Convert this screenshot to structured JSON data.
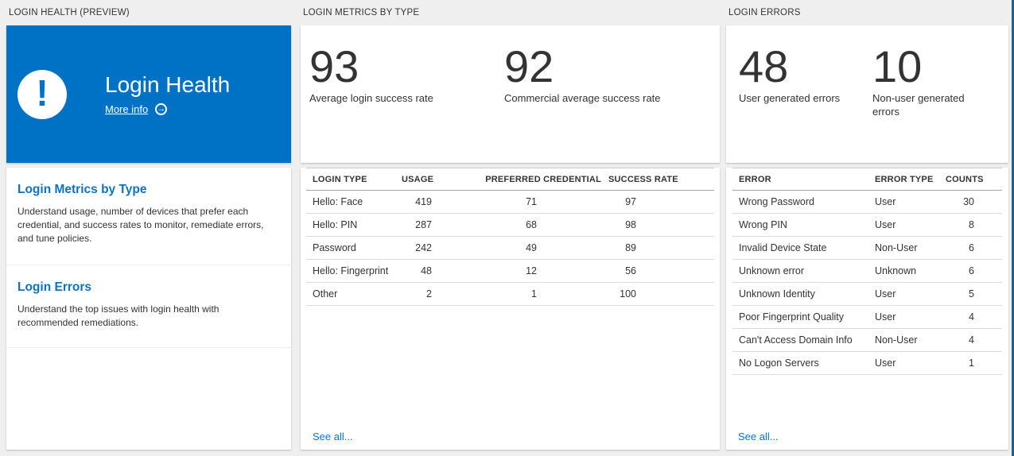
{
  "colors": {
    "tile_blue": "#0072c6",
    "heading_blue": "#0f72bd",
    "link_blue": "#0078d4",
    "right_edge_strip": "#1b6292",
    "page_background": "#efefef"
  },
  "health_panel": {
    "header": "LOGIN HEALTH (PREVIEW)",
    "tile": {
      "title": "Login Health",
      "more_info_label": "More info",
      "icon": "exclamation-alert-icon",
      "arrow_icon": "arrow-right-circle-icon",
      "arrow_glyph": "→",
      "exclamation_glyph": "!"
    },
    "sections": [
      {
        "title": "Login Metrics by Type",
        "description": "Understand usage, number of devices that prefer each credential, and success rates to monitor, remediate errors, and tune policies."
      },
      {
        "title": "Login Errors",
        "description": "Understand the top issues with login health with recommended remediations."
      }
    ]
  },
  "metrics_panel": {
    "header": "LOGIN METRICS BY TYPE",
    "stats": [
      {
        "value": "93",
        "label": "Average login success rate"
      },
      {
        "value": "92",
        "label": "Commercial average success rate"
      }
    ],
    "table": {
      "columns": [
        "LOGIN TYPE",
        "USAGE",
        "PREFERRED CREDENTIAL",
        "SUCCESS RATE"
      ],
      "rows": [
        [
          "Hello: Face",
          "419",
          "71",
          "97"
        ],
        [
          "Hello: PIN",
          "287",
          "68",
          "98"
        ],
        [
          "Password",
          "242",
          "49",
          "89"
        ],
        [
          "Hello: Fingerprint",
          "48",
          "12",
          "56"
        ],
        [
          "Other",
          "2",
          "1",
          "100"
        ]
      ]
    },
    "see_all_label": "See all..."
  },
  "errors_panel": {
    "header": "LOGIN ERRORS",
    "stats": [
      {
        "value": "48",
        "label": "User generated errors"
      },
      {
        "value": "10",
        "label": "Non-user generated errors"
      }
    ],
    "table": {
      "columns": [
        "ERROR",
        "ERROR TYPE",
        "COUNTS"
      ],
      "rows": [
        [
          "Wrong Password",
          "User",
          "30"
        ],
        [
          "Wrong PIN",
          "User",
          "8"
        ],
        [
          "Invalid Device State",
          "Non-User",
          "6"
        ],
        [
          "Unknown error",
          "Unknown",
          "6"
        ],
        [
          "Unknown Identity",
          "User",
          "5"
        ],
        [
          "Poor Fingerprint Quality",
          "User",
          "4"
        ],
        [
          "Can't Access Domain Info",
          "Non-User",
          "4"
        ],
        [
          "No Logon Servers",
          "User",
          "1"
        ]
      ]
    },
    "see_all_label": "See all..."
  }
}
